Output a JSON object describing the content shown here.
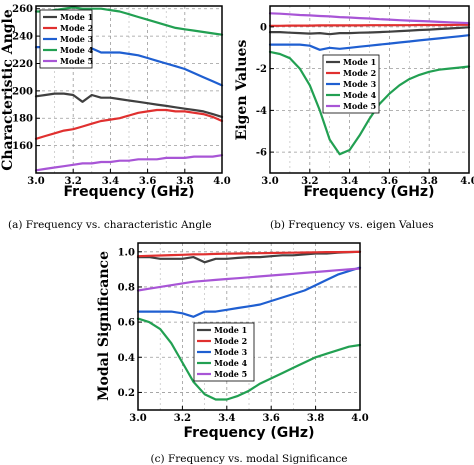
{
  "chart_data": [
    {
      "type": "line",
      "caption": "(a)  Frequency vs. characteristic Angle",
      "xlabel": "Frequency (GHz)",
      "ylabel": "Characteristic Angle",
      "xlim": [
        3.0,
        4.0
      ],
      "ylim": [
        140,
        262
      ],
      "xticks": [
        3.0,
        3.2,
        3.4,
        3.6,
        3.8,
        4.0
      ],
      "xtick_labels": [
        "3.0",
        "3.2",
        "3.4",
        "3.6",
        "3.8",
        "4.0"
      ],
      "yticks": [
        160,
        180,
        200,
        220,
        240,
        260
      ],
      "ytick_labels": [
        "160",
        "180",
        "200",
        "220",
        "240",
        "260"
      ],
      "grid": true,
      "legend_position": "top-left",
      "x": [
        3.0,
        3.05,
        3.1,
        3.15,
        3.2,
        3.25,
        3.3,
        3.35,
        3.4,
        3.45,
        3.5,
        3.55,
        3.6,
        3.65,
        3.7,
        3.75,
        3.8,
        3.85,
        3.9,
        3.95,
        4.0
      ],
      "series": [
        {
          "name": "Mode 1",
          "color": "#404040",
          "values": [
            196,
            197,
            198,
            198,
            197,
            192,
            197,
            195,
            195,
            194,
            193,
            192,
            191,
            190,
            189,
            188,
            187,
            186,
            185,
            183,
            181
          ]
        },
        {
          "name": "Mode 2",
          "color": "#e0302f",
          "values": [
            165,
            167,
            169,
            171,
            172,
            174,
            176,
            178,
            179,
            180,
            182,
            184,
            185,
            186,
            186,
            185,
            185,
            184,
            183,
            181,
            178
          ]
        },
        {
          "name": "Mode 3",
          "color": "#1f5fd1",
          "values": [
            232,
            232,
            232,
            232,
            231,
            230,
            231,
            228,
            228,
            228,
            227,
            226,
            224,
            222,
            220,
            218,
            216,
            213,
            210,
            207,
            204
          ]
        },
        {
          "name": "Mode 4",
          "color": "#22a052",
          "values": [
            258,
            258,
            259,
            260,
            261,
            260,
            260,
            260,
            259,
            258,
            256,
            254,
            252,
            250,
            248,
            246,
            245,
            244,
            243,
            242,
            241
          ]
        },
        {
          "name": "Mode 5",
          "color": "#a855d6",
          "values": [
            142,
            143,
            144,
            145,
            146,
            147,
            147,
            148,
            148,
            149,
            149,
            150,
            150,
            150,
            151,
            151,
            151,
            152,
            152,
            152,
            153
          ]
        }
      ]
    },
    {
      "type": "line",
      "caption": "(b) Frequency vs. eigen Values",
      "xlabel": "Frequency (GHz)",
      "ylabel": "Eigen Values",
      "xlim": [
        3.0,
        4.0
      ],
      "ylim": [
        -7,
        1
      ],
      "xticks": [
        3.0,
        3.2,
        3.4,
        3.6,
        3.8,
        4.0
      ],
      "xtick_labels": [
        "3.0",
        "3.2",
        "3.4",
        "3.6",
        "3.8",
        "4.0"
      ],
      "yticks": [
        -6,
        -4,
        -2,
        0
      ],
      "ytick_labels": [
        "-6",
        "-4",
        "-2",
        "0"
      ],
      "grid": true,
      "legend_position": "center-left",
      "x": [
        3.0,
        3.05,
        3.1,
        3.15,
        3.2,
        3.25,
        3.3,
        3.35,
        3.4,
        3.45,
        3.5,
        3.55,
        3.6,
        3.65,
        3.7,
        3.75,
        3.8,
        3.85,
        3.9,
        3.95,
        4.0
      ],
      "series": [
        {
          "name": "Mode 1",
          "color": "#404040",
          "values": [
            -0.25,
            -0.25,
            -0.28,
            -0.3,
            -0.32,
            -0.3,
            -0.35,
            -0.3,
            -0.3,
            -0.28,
            -0.27,
            -0.25,
            -0.23,
            -0.2,
            -0.18,
            -0.15,
            -0.13,
            -0.1,
            -0.08,
            -0.05,
            -0.02
          ]
        },
        {
          "name": "Mode 2",
          "color": "#e0302f",
          "values": [
            0.05,
            0.05,
            0.06,
            0.06,
            0.06,
            0.07,
            0.07,
            0.07,
            0.07,
            0.07,
            0.08,
            0.08,
            0.08,
            0.08,
            0.08,
            0.09,
            0.09,
            0.09,
            0.09,
            0.1,
            0.1
          ]
        },
        {
          "name": "Mode 3",
          "color": "#1f5fd1",
          "values": [
            -0.85,
            -0.85,
            -0.85,
            -0.85,
            -0.9,
            -1.1,
            -1.0,
            -1.05,
            -1.0,
            -0.95,
            -0.9,
            -0.85,
            -0.8,
            -0.75,
            -0.7,
            -0.65,
            -0.6,
            -0.55,
            -0.5,
            -0.45,
            -0.4
          ]
        },
        {
          "name": "Mode 4",
          "color": "#22a052",
          "values": [
            -1.2,
            -1.3,
            -1.5,
            -2.0,
            -2.8,
            -4.0,
            -5.4,
            -6.1,
            -5.9,
            -5.2,
            -4.4,
            -3.7,
            -3.2,
            -2.8,
            -2.5,
            -2.3,
            -2.15,
            -2.05,
            -2.0,
            -1.95,
            -1.9
          ]
        },
        {
          "name": "Mode 5",
          "color": "#a855d6",
          "values": [
            0.65,
            0.63,
            0.6,
            0.57,
            0.55,
            0.52,
            0.5,
            0.47,
            0.45,
            0.42,
            0.4,
            0.37,
            0.35,
            0.32,
            0.3,
            0.28,
            0.26,
            0.24,
            0.22,
            0.2,
            0.18
          ]
        }
      ]
    },
    {
      "type": "line",
      "caption": "(c)  Frequency vs. modal Significance",
      "xlabel": "Frequency (GHz)",
      "ylabel": "Modal Significance",
      "xlim": [
        3.0,
        4.0
      ],
      "ylim": [
        0.1,
        1.05
      ],
      "xticks": [
        3.0,
        3.2,
        3.4,
        3.6,
        3.8,
        4.0
      ],
      "xtick_labels": [
        "3.0",
        "3.2",
        "3.4",
        "3.6",
        "3.8",
        "4.0"
      ],
      "yticks": [
        0.2,
        0.4,
        0.6,
        0.8,
        1.0
      ],
      "ytick_labels": [
        "0.2",
        "0.4",
        "0.6",
        "0.8",
        "1.0"
      ],
      "grid": true,
      "legend_position": "center-right",
      "x": [
        3.0,
        3.05,
        3.1,
        3.15,
        3.2,
        3.25,
        3.3,
        3.35,
        3.4,
        3.45,
        3.5,
        3.55,
        3.6,
        3.65,
        3.7,
        3.75,
        3.8,
        3.85,
        3.9,
        3.95,
        4.0
      ],
      "series": [
        {
          "name": "Mode 1",
          "color": "#404040",
          "values": [
            0.97,
            0.97,
            0.96,
            0.96,
            0.96,
            0.97,
            0.94,
            0.96,
            0.96,
            0.965,
            0.97,
            0.97,
            0.975,
            0.98,
            0.98,
            0.985,
            0.99,
            0.99,
            0.995,
            0.998,
            1.0
          ]
        },
        {
          "name": "Mode 2",
          "color": "#e0302f",
          "values": [
            0.975,
            0.977,
            0.979,
            0.981,
            0.983,
            0.985,
            0.986,
            0.988,
            0.989,
            0.99,
            0.991,
            0.992,
            0.993,
            0.994,
            0.995,
            0.996,
            0.997,
            0.998,
            0.998,
            0.999,
            1.0
          ]
        },
        {
          "name": "Mode 3",
          "color": "#1f5fd1",
          "values": [
            0.66,
            0.66,
            0.66,
            0.66,
            0.65,
            0.63,
            0.66,
            0.66,
            0.67,
            0.68,
            0.69,
            0.7,
            0.72,
            0.74,
            0.76,
            0.78,
            0.81,
            0.84,
            0.87,
            0.89,
            0.91
          ]
        },
        {
          "name": "Mode 4",
          "color": "#22a052",
          "values": [
            0.62,
            0.6,
            0.56,
            0.48,
            0.37,
            0.26,
            0.19,
            0.16,
            0.16,
            0.18,
            0.21,
            0.25,
            0.28,
            0.31,
            0.34,
            0.37,
            0.4,
            0.42,
            0.44,
            0.46,
            0.47
          ]
        },
        {
          "name": "Mode 5",
          "color": "#a855d6",
          "values": [
            0.78,
            0.79,
            0.8,
            0.81,
            0.82,
            0.83,
            0.835,
            0.84,
            0.845,
            0.85,
            0.855,
            0.86,
            0.865,
            0.87,
            0.875,
            0.88,
            0.885,
            0.89,
            0.895,
            0.9,
            0.905
          ]
        }
      ]
    }
  ]
}
